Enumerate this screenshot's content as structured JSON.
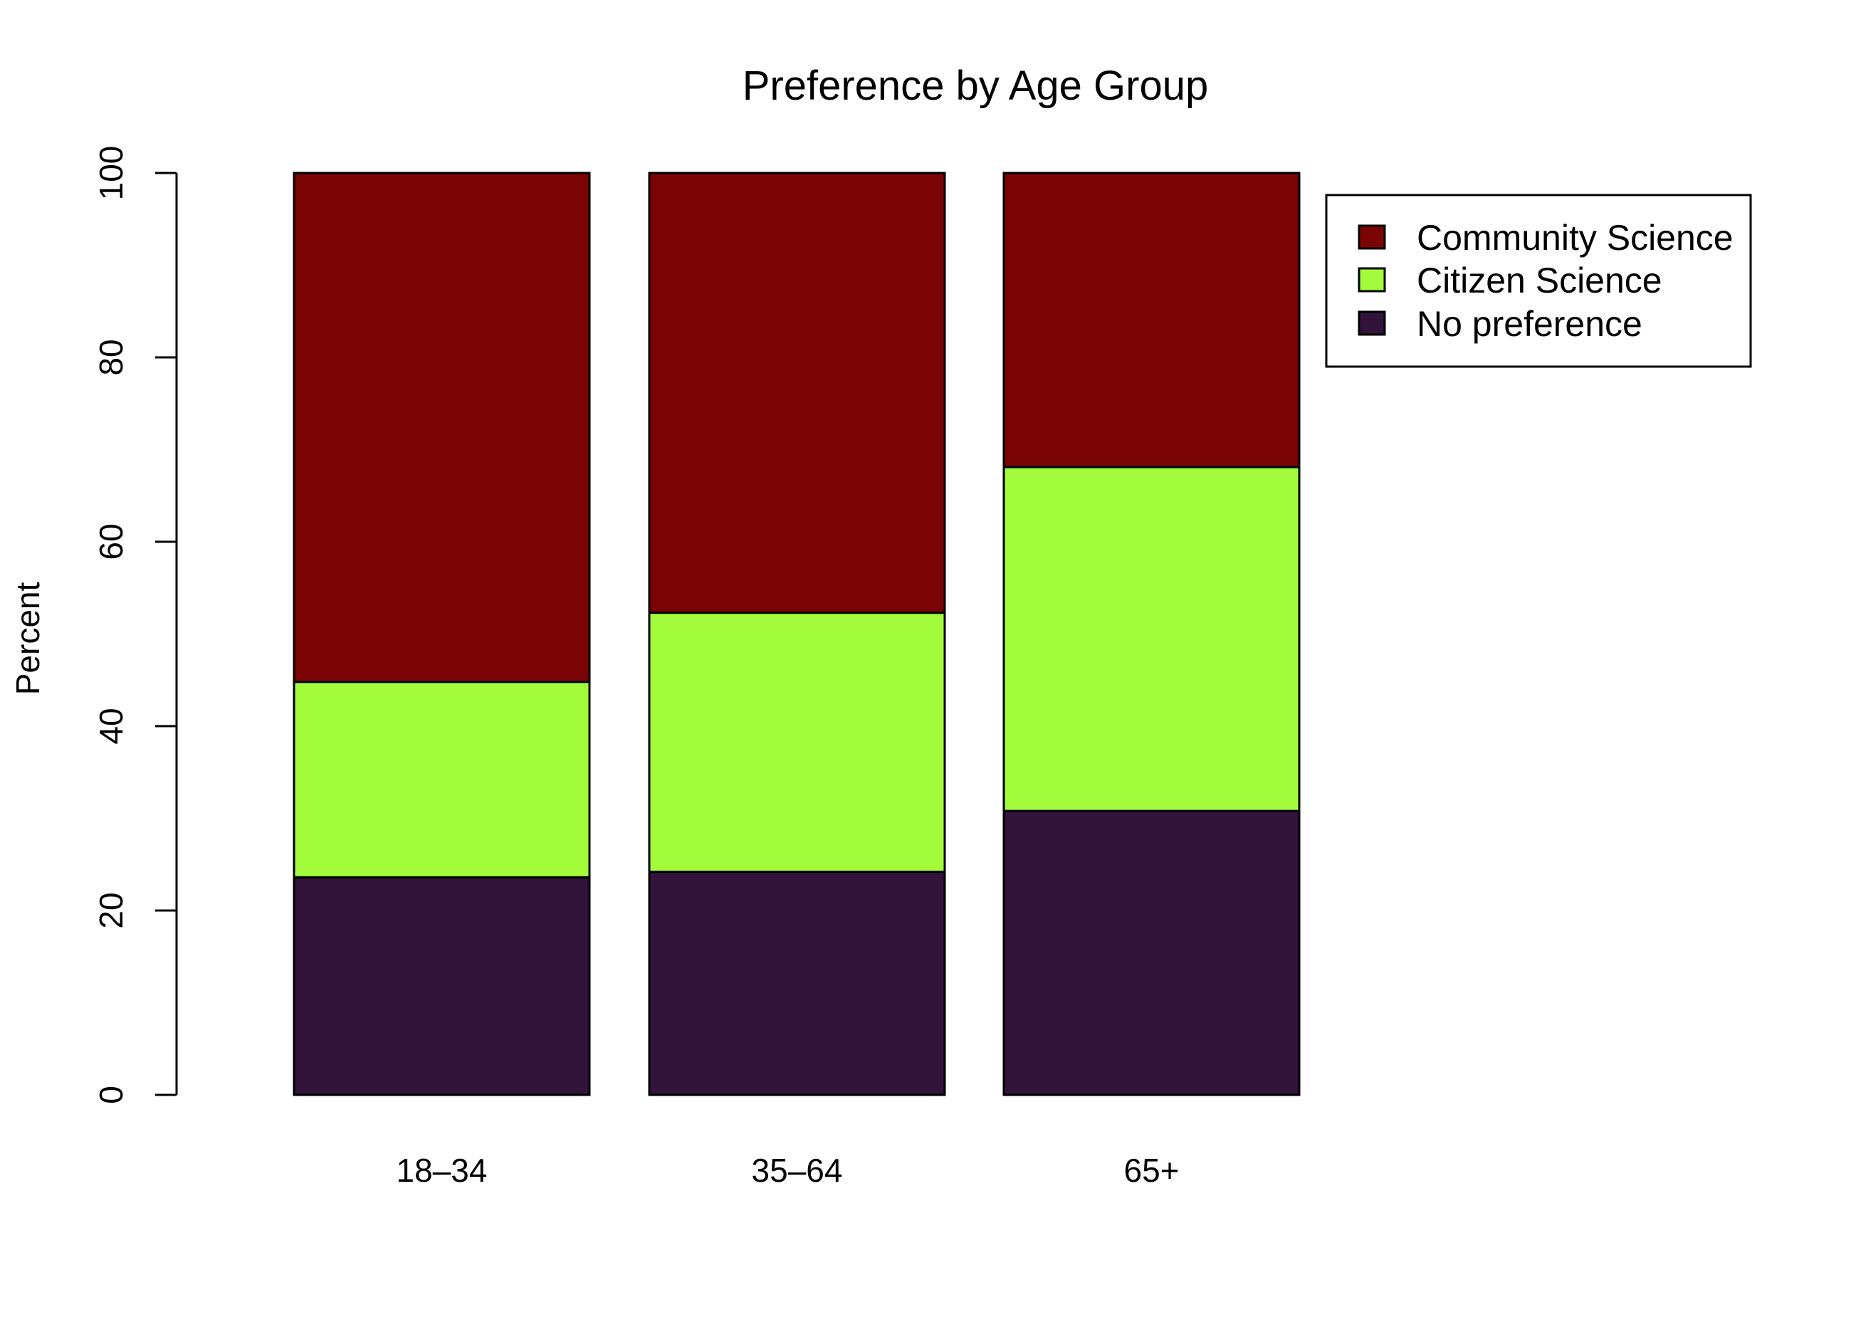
{
  "chart_data": {
    "type": "bar",
    "stacked": true,
    "title": "Preference by Age Group",
    "xlabel": "",
    "ylabel": "Percent",
    "ylim": [
      0,
      100
    ],
    "yticks": [
      "0",
      "20",
      "40",
      "60",
      "80",
      "100"
    ],
    "categories": [
      "18–34",
      "35–64",
      "65+"
    ],
    "series": [
      {
        "name": "No preference",
        "color": "#32133a",
        "values": [
          23.6,
          24.2,
          30.8
        ]
      },
      {
        "name": "Citizen Science",
        "color": "#a2fc3c",
        "values": [
          21.2,
          28.1,
          37.3
        ]
      },
      {
        "name": "Community Science",
        "color": "#7a0403",
        "values": [
          55.2,
          47.7,
          31.9
        ]
      }
    ],
    "legend": {
      "position": "top-right",
      "order": [
        "Community Science",
        "Citizen Science",
        "No preference"
      ]
    },
    "grid": false
  }
}
